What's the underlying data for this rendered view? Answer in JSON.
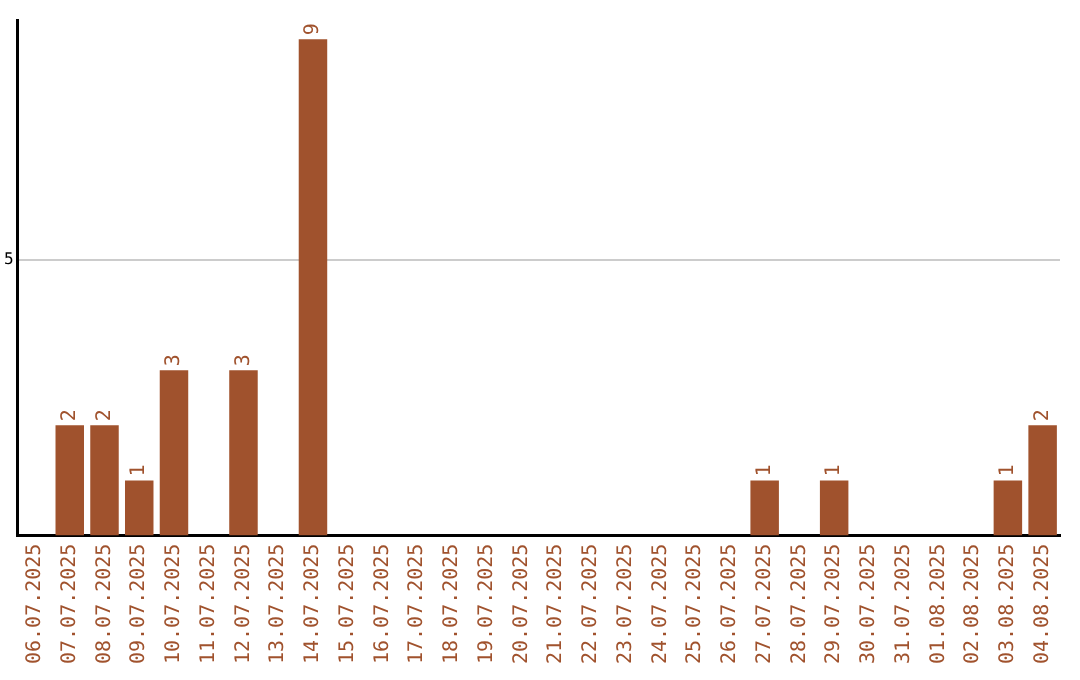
{
  "chart_data": {
    "type": "bar",
    "categories": [
      "06.07.2025",
      "07.07.2025",
      "08.07.2025",
      "09.07.2025",
      "10.07.2025",
      "11.07.2025",
      "12.07.2025",
      "13.07.2025",
      "14.07.2025",
      "15.07.2025",
      "16.07.2025",
      "17.07.2025",
      "18.07.2025",
      "19.07.2025",
      "20.07.2025",
      "21.07.2025",
      "22.07.2025",
      "23.07.2025",
      "24.07.2025",
      "25.07.2025",
      "26.07.2025",
      "27.07.2025",
      "28.07.2025",
      "29.07.2025",
      "30.07.2025",
      "31.07.2025",
      "01.08.2025",
      "02.08.2025",
      "03.08.2025",
      "04.08.2025"
    ],
    "values": [
      0,
      2,
      2,
      1,
      3,
      0,
      3,
      0,
      9,
      0,
      0,
      0,
      0,
      0,
      0,
      0,
      0,
      0,
      0,
      0,
      0,
      1,
      0,
      1,
      0,
      0,
      0,
      0,
      1,
      2
    ],
    "value_labels": [
      null,
      "2",
      "2",
      "1",
      "3",
      null,
      "3",
      null,
      "9",
      null,
      null,
      null,
      null,
      null,
      null,
      null,
      null,
      null,
      null,
      null,
      null,
      "1",
      null,
      "1",
      null,
      null,
      null,
      null,
      "1",
      "2"
    ],
    "color": "#a0522d",
    "ylim": [
      0,
      9.35
    ],
    "yticks": [
      5
    ],
    "grid": "y",
    "legend": false
  }
}
